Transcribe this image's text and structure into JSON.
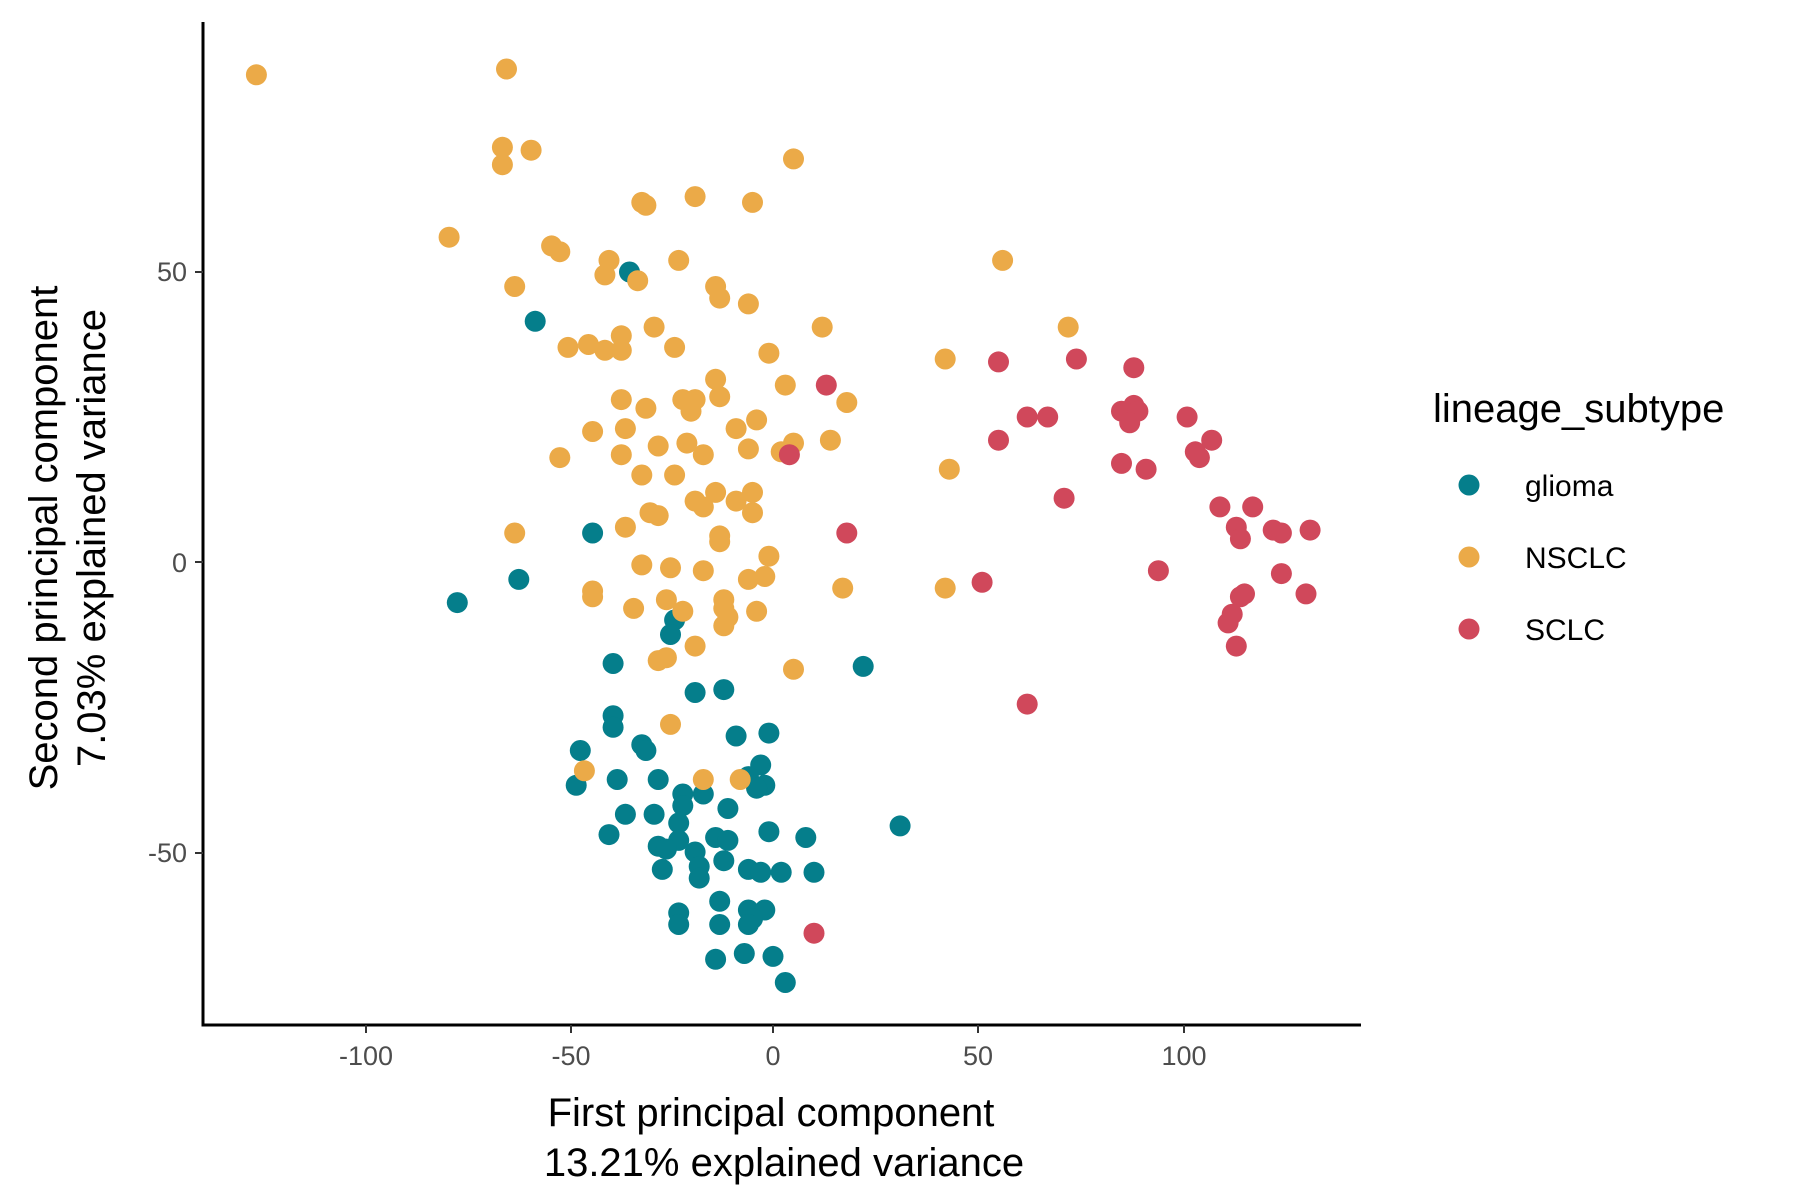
{
  "chart_data": {
    "type": "scatter",
    "xlabel": "First principal component",
    "xlabel_sub": "13.21% explained variance",
    "ylabel": "Second principal component",
    "ylabel_sub": "7.03% explained variance",
    "xlim": [
      -140,
      145
    ],
    "ylim": [
      -79,
      93
    ],
    "xticks": [
      -100,
      -50,
      0,
      50,
      100
    ],
    "yticks": [
      -50,
      0,
      50
    ],
    "tick_labels_x": [
      "-100",
      "-50",
      "0",
      "50",
      "100"
    ],
    "tick_labels_y": [
      "-50",
      "0",
      "50"
    ],
    "grid": false,
    "legend": {
      "title": "lineage_subtype",
      "position": "right"
    },
    "series": [
      {
        "name": "glioma",
        "color": "#057E8B",
        "points": [
          [
            -35,
            50
          ],
          [
            -58,
            41.5
          ],
          [
            -44,
            5
          ],
          [
            -62,
            -3
          ],
          [
            -77,
            -7
          ],
          [
            -24,
            -10
          ],
          [
            -25,
            -12.5
          ],
          [
            -39,
            -17.5
          ],
          [
            -19,
            -22.5
          ],
          [
            -12,
            -22
          ],
          [
            22,
            -18
          ],
          [
            -39,
            -26.5
          ],
          [
            -39,
            -28.5
          ],
          [
            -47,
            -32.5
          ],
          [
            -32,
            -31.5
          ],
          [
            -31,
            -32.5
          ],
          [
            -9,
            -30
          ],
          [
            -1,
            -29.5
          ],
          [
            -3,
            -35
          ],
          [
            -6,
            -37
          ],
          [
            -2,
            -38.5
          ],
          [
            -4,
            -39
          ],
          [
            -48,
            -38.5
          ],
          [
            -38,
            -37.5
          ],
          [
            -28,
            -37.5
          ],
          [
            -22,
            -40
          ],
          [
            -17,
            -40
          ],
          [
            -22,
            -42
          ],
          [
            -11,
            -42.5
          ],
          [
            -36,
            -43.5
          ],
          [
            -29,
            -43.5
          ],
          [
            -40,
            -47
          ],
          [
            -23,
            -45
          ],
          [
            -14,
            -47.5
          ],
          [
            -11,
            -48
          ],
          [
            -23,
            -48
          ],
          [
            -28,
            -49
          ],
          [
            -19,
            -50
          ],
          [
            -26,
            -49.5
          ],
          [
            -12,
            -51.5
          ],
          [
            -18,
            -52.5
          ],
          [
            -27,
            -53
          ],
          [
            -18,
            -54.5
          ],
          [
            -6,
            -53
          ],
          [
            -3,
            -53.5
          ],
          [
            2,
            -53.5
          ],
          [
            8,
            -47.5
          ],
          [
            10,
            -53.5
          ],
          [
            -1,
            -46.5
          ],
          [
            31,
            -45.5
          ],
          [
            -13,
            -58.5
          ],
          [
            -6,
            -60
          ],
          [
            -2,
            -60
          ],
          [
            -5,
            -61.5
          ],
          [
            -23,
            -60.5
          ],
          [
            -23,
            -62.5
          ],
          [
            -13,
            -62.5
          ],
          [
            -6,
            -62.5
          ],
          [
            -14,
            -68.5
          ],
          [
            -7,
            -67.5
          ],
          [
            0,
            -68
          ],
          [
            3,
            -72.5
          ]
        ]
      },
      {
        "name": "NSCLC",
        "color": "#EBAA48",
        "points": [
          [
            -126,
            84
          ],
          [
            -65,
            85
          ],
          [
            -66,
            71.5
          ],
          [
            -66,
            68.5
          ],
          [
            -59,
            71
          ],
          [
            5,
            69.5
          ],
          [
            -32,
            62
          ],
          [
            -31,
            61.5
          ],
          [
            -19,
            63
          ],
          [
            -5,
            62
          ],
          [
            -79,
            56
          ],
          [
            -54,
            54.5
          ],
          [
            -52,
            53.5
          ],
          [
            -40,
            52
          ],
          [
            -23,
            52
          ],
          [
            -41,
            49.5
          ],
          [
            -33,
            48.5
          ],
          [
            -63,
            47.5
          ],
          [
            -14,
            47.5
          ],
          [
            -13,
            45.5
          ],
          [
            -6,
            44.5
          ],
          [
            56,
            52
          ],
          [
            72,
            40.5
          ],
          [
            12,
            40.5
          ],
          [
            -29,
            40.5
          ],
          [
            -37,
            39
          ],
          [
            -50,
            37
          ],
          [
            -45,
            37.5
          ],
          [
            -41,
            36.5
          ],
          [
            -37,
            36.5
          ],
          [
            -24,
            37
          ],
          [
            -1,
            36
          ],
          [
            42,
            35
          ],
          [
            -14,
            31.5
          ],
          [
            3,
            30.5
          ],
          [
            -37,
            28
          ],
          [
            -22,
            28
          ],
          [
            -19,
            28
          ],
          [
            -13,
            28.5
          ],
          [
            -20,
            26
          ],
          [
            -31,
            26.5
          ],
          [
            -4,
            24.5
          ],
          [
            -9,
            23
          ],
          [
            -44,
            22.5
          ],
          [
            -36,
            23
          ],
          [
            -21,
            20.5
          ],
          [
            -28,
            20
          ],
          [
            -17,
            18.5
          ],
          [
            -6,
            19.5
          ],
          [
            2,
            19
          ],
          [
            5,
            20.5
          ],
          [
            14,
            21
          ],
          [
            18,
            27.5
          ],
          [
            -37,
            18.5
          ],
          [
            -52,
            18
          ],
          [
            -32,
            15
          ],
          [
            -24,
            15
          ],
          [
            43,
            16
          ],
          [
            -14,
            12
          ],
          [
            -5,
            12
          ],
          [
            -9,
            10.5
          ],
          [
            -19,
            10.5
          ],
          [
            -17,
            9.5
          ],
          [
            -28,
            8
          ],
          [
            -30,
            8.5
          ],
          [
            -5,
            8.5
          ],
          [
            -36,
            6
          ],
          [
            -63,
            5
          ],
          [
            -13,
            3.5
          ],
          [
            -13,
            4.5
          ],
          [
            -1,
            1
          ],
          [
            -32,
            -0.5
          ],
          [
            -25,
            -1
          ],
          [
            -17,
            -1.5
          ],
          [
            -6,
            -3
          ],
          [
            -2,
            -2.5
          ],
          [
            -44,
            -5
          ],
          [
            -44,
            -6
          ],
          [
            -12,
            -6.5
          ],
          [
            -26,
            -6.5
          ],
          [
            -34,
            -8
          ],
          [
            -12,
            -8
          ],
          [
            -22,
            -8.5
          ],
          [
            -11,
            -9.5
          ],
          [
            -4,
            -8.5
          ],
          [
            -12,
            -11
          ],
          [
            17,
            -4.5
          ],
          [
            42,
            -4.5
          ],
          [
            -19,
            -14.5
          ],
          [
            -28,
            -17
          ],
          [
            -26,
            -16.5
          ],
          [
            5,
            -18.5
          ],
          [
            -25,
            -28
          ],
          [
            -17,
            -37.5
          ],
          [
            -8,
            -37.5
          ],
          [
            -46,
            -36
          ]
        ]
      },
      {
        "name": "SCLC",
        "color": "#D0485B",
        "points": [
          [
            13,
            30.5
          ],
          [
            4,
            18.5
          ],
          [
            18,
            5
          ],
          [
            55,
            34.5
          ],
          [
            74,
            35
          ],
          [
            62,
            25
          ],
          [
            67,
            25
          ],
          [
            55,
            21
          ],
          [
            88,
            33.5
          ],
          [
            85,
            26
          ],
          [
            88,
            27
          ],
          [
            89,
            26
          ],
          [
            87,
            24
          ],
          [
            101,
            25
          ],
          [
            107,
            21
          ],
          [
            103,
            19
          ],
          [
            104,
            18
          ],
          [
            85,
            17
          ],
          [
            91,
            16
          ],
          [
            71,
            11
          ],
          [
            109,
            9.5
          ],
          [
            117,
            9.5
          ],
          [
            113,
            6
          ],
          [
            114,
            4
          ],
          [
            122,
            5.5
          ],
          [
            124,
            5
          ],
          [
            131,
            5.5
          ],
          [
            94,
            -1.5
          ],
          [
            124,
            -2
          ],
          [
            51,
            -3.5
          ],
          [
            115,
            -5.5
          ],
          [
            114,
            -6
          ],
          [
            130,
            -5.5
          ],
          [
            112,
            -9
          ],
          [
            111,
            -10.5
          ],
          [
            113,
            -14.5
          ],
          [
            62,
            -24.5
          ],
          [
            10,
            -64
          ]
        ]
      }
    ]
  }
}
